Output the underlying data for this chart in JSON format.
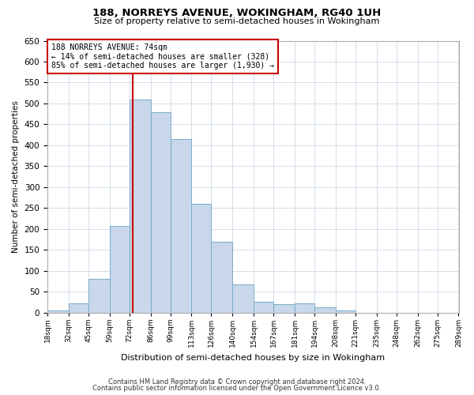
{
  "title": "188, NORREYS AVENUE, WOKINGHAM, RG40 1UH",
  "subtitle": "Size of property relative to semi-detached houses in Wokingham",
  "xlabel": "Distribution of semi-detached houses by size in Wokingham",
  "ylabel": "Number of semi-detached properties",
  "bar_heights": [
    5,
    22,
    80,
    207,
    510,
    480,
    415,
    260,
    170,
    67,
    27,
    20,
    22,
    12,
    5,
    0,
    0,
    0,
    0,
    0
  ],
  "bin_edges": [
    18,
    32,
    45,
    59,
    72,
    86,
    99,
    113,
    126,
    140,
    154,
    167,
    181,
    194,
    208,
    221,
    235,
    248,
    262,
    275,
    289
  ],
  "xtick_labels": [
    "18sqm",
    "32sqm",
    "45sqm",
    "59sqm",
    "72sqm",
    "86sqm",
    "99sqm",
    "113sqm",
    "126sqm",
    "140sqm",
    "154sqm",
    "167sqm",
    "181sqm",
    "194sqm",
    "208sqm",
    "221sqm",
    "235sqm",
    "248sqm",
    "262sqm",
    "275sqm",
    "289sqm"
  ],
  "ylim": [
    0,
    650
  ],
  "yticks": [
    0,
    50,
    100,
    150,
    200,
    250,
    300,
    350,
    400,
    450,
    500,
    550,
    600,
    650
  ],
  "property_line_x": 74,
  "bar_color": "#c8d8ea",
  "bar_edge_color": "#7aaaca",
  "line_color": "#cc0000",
  "annotation_line1": "188 NORREYS AVENUE: 74sqm",
  "annotation_line2": "← 14% of semi-detached houses are smaller (328)",
  "annotation_line3": "85% of semi-detached houses are larger (1,930) →",
  "annotation_box_color": "#ffffff",
  "annotation_box_edge": "#cc0000",
  "footer1": "Contains HM Land Registry data © Crown copyright and database right 2024.",
  "footer2": "Contains public sector information licensed under the Open Government Licence v3.0.",
  "background_color": "#ffffff",
  "grid_color": "#ccd8e4"
}
